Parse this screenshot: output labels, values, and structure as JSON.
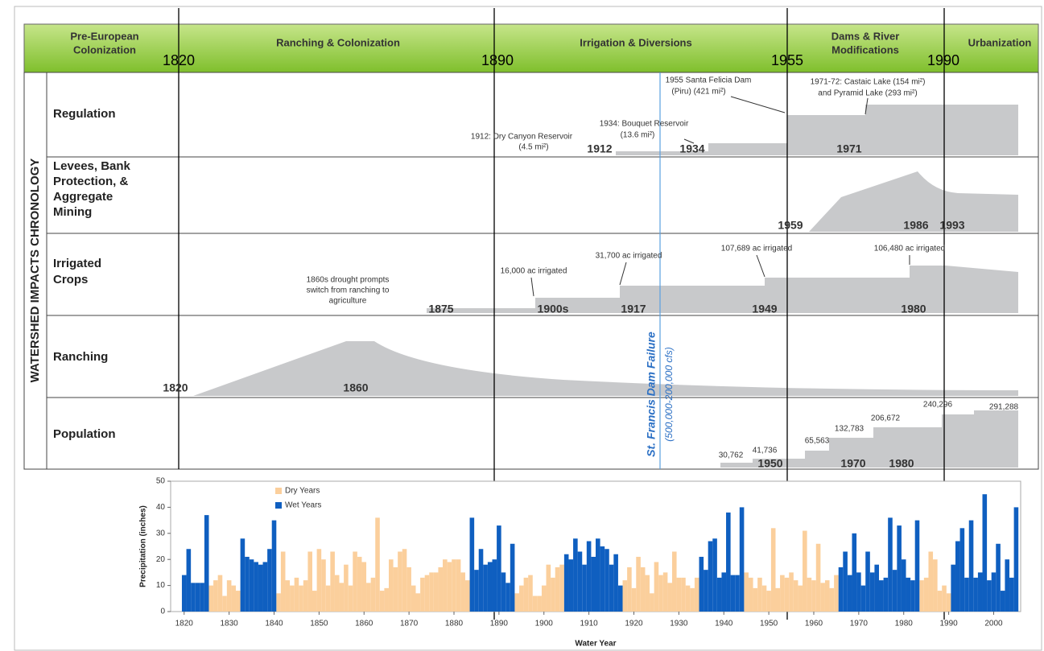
{
  "header": {
    "eras": [
      [
        "Pre-European",
        "Colonization"
      ],
      [
        "Ranching & Colonization"
      ],
      [
        "Irrigation & Diversions"
      ],
      [
        "Dams & River",
        "Modifications"
      ],
      [
        "Urbanization"
      ]
    ],
    "years": [
      "1820",
      "1890",
      "1955",
      "1990"
    ]
  },
  "side_label": "WATERSHED IMPACTS CHRONOLOGY",
  "rows": [
    {
      "label": [
        "Regulation"
      ],
      "years": [
        "1912",
        "1934",
        "1971"
      ],
      "annotations": [
        [
          "1912: Dry Canyon Reservoir",
          "(4.5 mi²)"
        ],
        [
          "1934: Bouquet Reservoir",
          "(13.6 mi²)"
        ],
        [
          "1955 Santa Felicia Dam",
          "(Piru) (421 mi²)"
        ],
        [
          "1971-72: Castaic Lake (154 mi²)",
          "and Pyramid Lake (293 mi²)"
        ]
      ]
    },
    {
      "label": [
        "Levees, Bank",
        "Protection, &",
        "Aggregate",
        "Mining"
      ],
      "years": [
        "1959",
        "1986",
        "1993"
      ],
      "annotations": []
    },
    {
      "label": [
        "Irrigated",
        "Crops"
      ],
      "years": [
        "1875",
        "1900s",
        "1917",
        "1949",
        "1980"
      ],
      "annotations": [
        [
          "1860s drought prompts",
          "switch from ranching to",
          "agriculture"
        ],
        [
          "16,000 ac irrigated"
        ],
        [
          "31,700 ac irrigated"
        ],
        [
          "107,689 ac irrigated"
        ],
        [
          "106,480 ac irrigated"
        ]
      ]
    },
    {
      "label": [
        "Ranching"
      ],
      "years": [
        "1820",
        "1860"
      ],
      "annotations": []
    },
    {
      "label": [
        "Population"
      ],
      "years": [
        "1950",
        "1970",
        "1980"
      ],
      "annotations": [
        [
          "30,762"
        ],
        [
          "41,736"
        ],
        [
          "65,563"
        ],
        [
          "132,783"
        ],
        [
          "206,672"
        ],
        [
          "240,296"
        ],
        [
          "291,288"
        ]
      ]
    }
  ],
  "dam_failure": {
    "label": "St. Francis Dam Failure",
    "flow": "(500,000-200,000 cfs)"
  },
  "chart_data": {
    "type": "bar",
    "xlabel": "Water Year",
    "ylabel": "Precipitation (inches)",
    "xlim": [
      1817,
      2006
    ],
    "ylim": [
      0,
      50
    ],
    "xticks": [
      1820,
      1830,
      1840,
      1850,
      1860,
      1870,
      1880,
      1890,
      1900,
      1910,
      1920,
      1930,
      1940,
      1950,
      1960,
      1970,
      1980,
      1990,
      2000
    ],
    "yticks": [
      0,
      10,
      20,
      30,
      40,
      50
    ],
    "legend": "upper left",
    "x": [
      1820,
      1821,
      1822,
      1823,
      1824,
      1825,
      1826,
      1827,
      1828,
      1829,
      1830,
      1831,
      1832,
      1833,
      1834,
      1835,
      1836,
      1837,
      1838,
      1839,
      1840,
      1841,
      1842,
      1843,
      1844,
      1845,
      1846,
      1847,
      1848,
      1849,
      1850,
      1851,
      1852,
      1853,
      1854,
      1855,
      1856,
      1857,
      1858,
      1859,
      1860,
      1861,
      1862,
      1863,
      1864,
      1865,
      1866,
      1867,
      1868,
      1869,
      1870,
      1871,
      1872,
      1873,
      1874,
      1875,
      1876,
      1877,
      1878,
      1879,
      1880,
      1881,
      1882,
      1883,
      1884,
      1885,
      1886,
      1887,
      1888,
      1889,
      1890,
      1891,
      1892,
      1893,
      1894,
      1895,
      1896,
      1897,
      1898,
      1899,
      1900,
      1901,
      1902,
      1903,
      1904,
      1905,
      1906,
      1907,
      1908,
      1909,
      1910,
      1911,
      1912,
      1913,
      1914,
      1915,
      1916,
      1917,
      1918,
      1919,
      1920,
      1921,
      1922,
      1923,
      1924,
      1925,
      1926,
      1927,
      1928,
      1929,
      1930,
      1931,
      1932,
      1933,
      1934,
      1935,
      1936,
      1937,
      1938,
      1939,
      1940,
      1941,
      1942,
      1943,
      1944,
      1945,
      1946,
      1947,
      1948,
      1949,
      1950,
      1951,
      1952,
      1953,
      1954,
      1955,
      1956,
      1957,
      1958,
      1959,
      1960,
      1961,
      1962,
      1963,
      1964,
      1965,
      1966,
      1967,
      1968,
      1969,
      1970,
      1971,
      1972,
      1973,
      1974,
      1975,
      1976,
      1977,
      1978,
      1979,
      1980,
      1981,
      1982,
      1983,
      1984,
      1985,
      1986,
      1987,
      1988,
      1989,
      1990,
      1991,
      1992,
      1993,
      1994,
      1995,
      1996,
      1997,
      1998,
      1999,
      2000,
      2001,
      2002,
      2003,
      2004,
      2005
    ],
    "series": [
      {
        "name": "Dry Years",
        "color": "#fbcf9c",
        "values": [
          null,
          null,
          null,
          null,
          null,
          null,
          10,
          12,
          14,
          6,
          12,
          10,
          8,
          null,
          null,
          null,
          null,
          null,
          null,
          null,
          null,
          7,
          23,
          12,
          10,
          13,
          10,
          12,
          23,
          8,
          24,
          20,
          10,
          23,
          14,
          11,
          18,
          10,
          23,
          21,
          19,
          11,
          13,
          36,
          8,
          9,
          20,
          17,
          23,
          24,
          17,
          10,
          7,
          13,
          14,
          15,
          15,
          17,
          20,
          19,
          20,
          20,
          15,
          12,
          null,
          null,
          null,
          null,
          null,
          null,
          null,
          null,
          null,
          null,
          7,
          10,
          13,
          14,
          6,
          6,
          10,
          18,
          13,
          17,
          18,
          null,
          null,
          null,
          null,
          null,
          null,
          null,
          null,
          null,
          null,
          null,
          null,
          null,
          12,
          17,
          9,
          21,
          17,
          14,
          7,
          19,
          14,
          15,
          11,
          23,
          13,
          13,
          10,
          9,
          13,
          null,
          null,
          null,
          null,
          null,
          null,
          null,
          null,
          null,
          null,
          15,
          13,
          9,
          13,
          10,
          8,
          32,
          9,
          14,
          13,
          15,
          12,
          10,
          31,
          13,
          12,
          26,
          11,
          12,
          9,
          14,
          null,
          null,
          null,
          null,
          null,
          null,
          null,
          null,
          null,
          null,
          null,
          null,
          null,
          null,
          null,
          null,
          null,
          null,
          12,
          13,
          23,
          20,
          8,
          10,
          7,
          null,
          null,
          null,
          null,
          null,
          null,
          null,
          null,
          null,
          null,
          null,
          null,
          null,
          null,
          null
        ]
      },
      {
        "name": "Wet Years",
        "color": "#0f5fc0",
        "values": [
          14,
          24,
          11,
          11,
          11,
          37,
          null,
          null,
          null,
          null,
          null,
          null,
          null,
          28,
          21,
          20,
          19,
          18,
          19,
          24,
          35,
          null,
          null,
          null,
          null,
          null,
          null,
          null,
          null,
          null,
          null,
          null,
          null,
          null,
          null,
          null,
          null,
          null,
          null,
          null,
          null,
          null,
          null,
          null,
          null,
          null,
          null,
          null,
          null,
          null,
          null,
          null,
          null,
          null,
          null,
          null,
          null,
          null,
          null,
          null,
          null,
          null,
          null,
          null,
          36,
          16,
          24,
          18,
          19,
          20,
          33,
          15,
          11,
          26,
          null,
          null,
          null,
          null,
          null,
          null,
          null,
          null,
          null,
          null,
          null,
          22,
          20,
          28,
          23,
          18,
          27,
          21,
          28,
          25,
          24,
          18,
          22,
          10,
          null,
          null,
          null,
          null,
          null,
          null,
          null,
          null,
          null,
          null,
          null,
          null,
          null,
          null,
          null,
          null,
          null,
          21,
          16,
          27,
          28,
          13,
          15,
          38,
          14,
          14,
          40,
          null,
          null,
          null,
          null,
          null,
          null,
          null,
          null,
          null,
          null,
          null,
          null,
          null,
          null,
          null,
          null,
          null,
          null,
          null,
          null,
          null,
          17,
          23,
          14,
          30,
          15,
          10,
          23,
          15,
          18,
          12,
          13,
          36,
          16,
          33,
          20,
          13,
          12,
          35,
          null,
          null,
          null,
          null,
          null,
          null,
          null,
          18,
          27,
          32,
          13,
          35,
          13,
          15,
          45,
          12,
          15,
          26,
          8,
          20,
          13,
          40
        ]
      }
    ]
  }
}
